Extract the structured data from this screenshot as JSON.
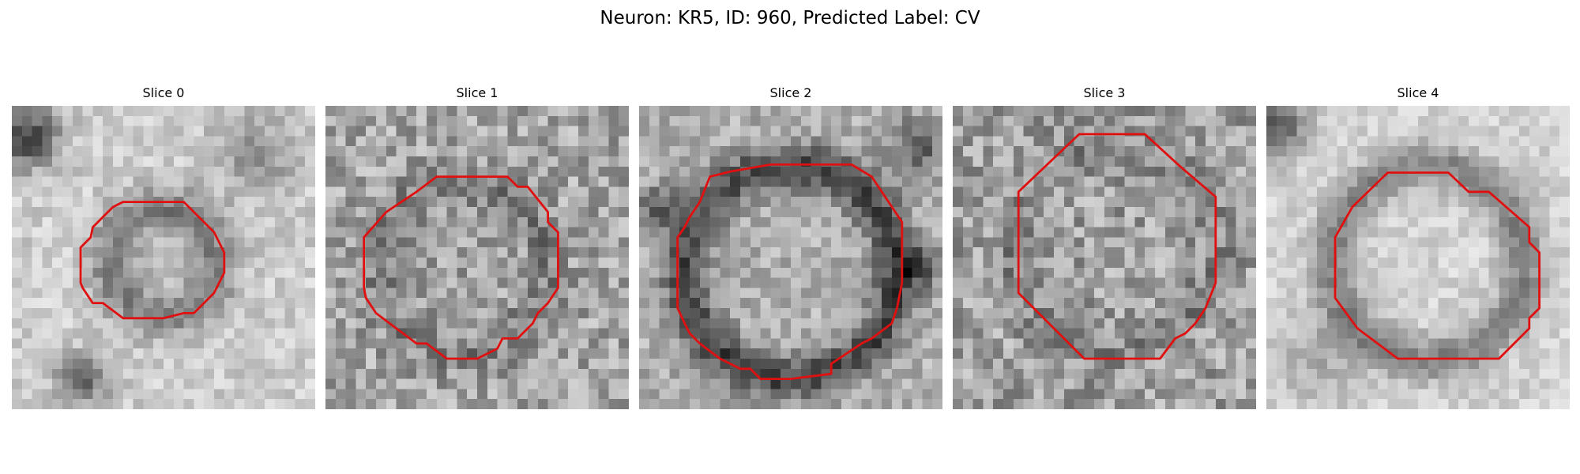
{
  "figure": {
    "title": "Neuron: KR5, ID: 960, Predicted Label: CV"
  },
  "contour_color": "#e01010",
  "grid_size": 30,
  "slices": [
    {
      "title": "Slice 0",
      "contour": [
        [
          11,
          9.5
        ],
        [
          17,
          9.5
        ],
        [
          20,
          12.5
        ],
        [
          21,
          14.5
        ],
        [
          21,
          16.5
        ],
        [
          20,
          18.5
        ],
        [
          19,
          19.5
        ],
        [
          18,
          20.5
        ],
        [
          17,
          20.5
        ],
        [
          15,
          21
        ],
        [
          11,
          21
        ],
        [
          9,
          19.5
        ],
        [
          8,
          19.5
        ],
        [
          7,
          18
        ],
        [
          6.8,
          17.5
        ],
        [
          6.8,
          14
        ],
        [
          7.8,
          13
        ],
        [
          8,
          12
        ],
        [
          9,
          11
        ],
        [
          10,
          10
        ]
      ]
    },
    {
      "title": "Slice 1",
      "contour": [
        [
          9,
          8.5
        ],
        [
          11,
          7
        ],
        [
          18,
          7
        ],
        [
          19,
          8
        ],
        [
          20,
          8
        ],
        [
          22,
          10.5
        ],
        [
          22,
          11.5
        ],
        [
          23,
          12.5
        ],
        [
          23,
          18
        ],
        [
          22,
          19.5
        ],
        [
          21,
          20.5
        ],
        [
          20.5,
          21.5
        ],
        [
          19,
          23
        ],
        [
          17.5,
          23
        ],
        [
          17,
          24
        ],
        [
          15,
          25
        ],
        [
          12,
          25
        ],
        [
          10,
          23.5
        ],
        [
          9,
          23.5
        ],
        [
          7,
          22
        ],
        [
          5,
          20.5
        ],
        [
          4,
          19
        ],
        [
          3.8,
          18
        ],
        [
          3.8,
          13
        ],
        [
          6,
          10.5
        ]
      ]
    },
    {
      "title": "Slice 2",
      "contour": [
        [
          7,
          7
        ],
        [
          9,
          6.5
        ],
        [
          13,
          5.8
        ],
        [
          21,
          5.8
        ],
        [
          23,
          7
        ],
        [
          25,
          10
        ],
        [
          26,
          11.5
        ],
        [
          26,
          17.5
        ],
        [
          25.5,
          20
        ],
        [
          25,
          21.5
        ],
        [
          23,
          23
        ],
        [
          22,
          23.5
        ],
        [
          19,
          25.5
        ],
        [
          19,
          26.5
        ],
        [
          15,
          27
        ],
        [
          12,
          27
        ],
        [
          11,
          26
        ],
        [
          10,
          26
        ],
        [
          9,
          25.5
        ],
        [
          8,
          25
        ],
        [
          6,
          23.5
        ],
        [
          5,
          22.5
        ],
        [
          4.5,
          21.5
        ],
        [
          3.8,
          20
        ],
        [
          3.8,
          13
        ],
        [
          4.5,
          12
        ],
        [
          5,
          11
        ],
        [
          6,
          9.5
        ]
      ]
    },
    {
      "title": "Slice 3",
      "contour": [
        [
          6.5,
          8.5
        ],
        [
          12.5,
          2.8
        ],
        [
          19,
          2.8
        ],
        [
          22.5,
          6
        ],
        [
          26,
          9
        ],
        [
          26,
          17.5
        ],
        [
          25,
          20
        ],
        [
          24,
          21.5
        ],
        [
          23,
          22.5
        ],
        [
          22,
          23
        ],
        [
          20.5,
          25
        ],
        [
          13,
          25
        ],
        [
          7,
          19
        ],
        [
          6.5,
          18.5
        ]
      ]
    },
    {
      "title": "Slice 4",
      "contour": [
        [
          8.5,
          10
        ],
        [
          12,
          6.6
        ],
        [
          18,
          6.6
        ],
        [
          20,
          8.5
        ],
        [
          22,
          8.5
        ],
        [
          26,
          12
        ],
        [
          26,
          13.5
        ],
        [
          27,
          14.5
        ],
        [
          27,
          20
        ],
        [
          26,
          21
        ],
        [
          26,
          22
        ],
        [
          23,
          25
        ],
        [
          13,
          25
        ],
        [
          9,
          22
        ],
        [
          6.8,
          19
        ],
        [
          6.8,
          13
        ]
      ]
    }
  ]
}
